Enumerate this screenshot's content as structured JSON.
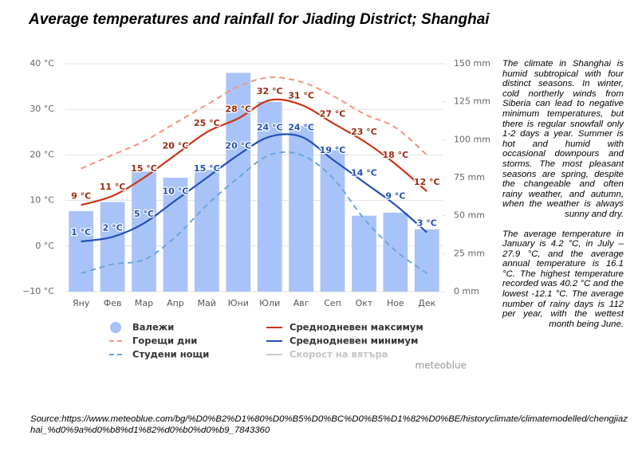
{
  "chart_data": {
    "type": "bar-line",
    "title": "Average temperatures and rainfall for Jiading District; Shanghai",
    "categories": [
      "Яну",
      "Фев",
      "Мар",
      "Апр",
      "Май",
      "Юни",
      "Юли",
      "Авг",
      "Сеп",
      "Окт",
      "Ное",
      "Дек"
    ],
    "series": [
      {
        "name": "Валежи",
        "color": "#a8c3f7",
        "type": "bar",
        "axis": "y2",
        "values": [
          53,
          59,
          79,
          75,
          80,
          144,
          125,
          109,
          93,
          50,
          52,
          41
        ]
      },
      {
        "name": "Горещи дни",
        "color": "#f2957f",
        "type": "line",
        "dashed": true,
        "values": [
          17,
          20,
          23,
          27,
          31,
          35,
          37,
          36,
          33,
          29,
          26,
          20
        ]
      },
      {
        "name": "Студени нощи",
        "color": "#6aa6d8",
        "type": "line",
        "dashed": true,
        "values": [
          -6,
          -4,
          -3,
          2,
          9,
          15,
          20,
          20,
          15,
          6,
          -1,
          -6
        ]
      },
      {
        "name": "Среднодневен максимум",
        "color": "#cc3314",
        "type": "line",
        "dashed": false,
        "values": [
          9,
          11,
          15,
          20,
          25,
          28,
          32,
          31,
          27,
          23,
          18,
          12
        ],
        "value_labels": [
          "9 °C",
          "11 °C",
          "15 °C",
          "20 °C",
          "25 °C",
          "28 °C",
          "32 °C",
          "31 °C",
          "27 °C",
          "23 °C",
          "18 °C",
          "12 °C"
        ],
        "label_color": "#9c2a10"
      },
      {
        "name": "Среднодневен минимум",
        "color": "#2451b5",
        "type": "line",
        "dashed": false,
        "values": [
          1,
          2,
          5,
          10,
          15,
          20,
          24,
          24,
          19,
          14,
          9,
          3
        ],
        "value_labels": [
          "1 °C",
          "2 °C",
          "5 °C",
          "10 °C",
          "15 °C",
          "20 °C",
          "24 °C",
          "24 °C",
          "19 °C",
          "14 °C",
          "9 °C",
          "3 °C"
        ],
        "label_color": "#2451b5"
      }
    ],
    "legend_extra": {
      "name": "Скорост на вятъра",
      "color": "#cccccc"
    },
    "ylim": [
      -10,
      40
    ],
    "yticks": [
      {
        "value": -10,
        "label": "−10 °C"
      },
      {
        "value": 0,
        "label": "0 °C"
      },
      {
        "value": 10,
        "label": "10 °C"
      },
      {
        "value": 20,
        "label": "20 °C"
      },
      {
        "value": 30,
        "label": "30 °C"
      },
      {
        "value": 40,
        "label": "40 °C"
      }
    ],
    "y2lim": [
      0,
      150
    ],
    "y2ticks": [
      {
        "value": 0,
        "label": "0 mm"
      },
      {
        "value": 25,
        "label": "25 mm"
      },
      {
        "value": 50,
        "label": "50 mm"
      },
      {
        "value": 75,
        "label": "75 mm"
      },
      {
        "value": 100,
        "label": "100 mm"
      },
      {
        "value": 125,
        "label": "125 mm"
      },
      {
        "value": 150,
        "label": "150 mm"
      }
    ],
    "grid": true,
    "watermark": "meteoblue"
  },
  "side_text": [
    "The climate in Shanghai is humid subtropical with four distinct seasons. In winter, cold northerly winds from Siberia can lead to negative minimum temperatures, but there is regular snowfall only 1-2 days a year. Summer is hot and humid with occasional downpours and storms. The most pleasant seasons are spring, despite the changeable and often rainy weather, and autumn, when the weather is always sunny and dry.",
    "The average temperature in January is 4.2 °C, in July – 27.9 °C, and the average annual temperature is 16.1 °C. The highest temperature recorded was 40.2 °C and the lowest -12.1 °C. The average number of rainy days is 112 per year, with the wettest month being June."
  ],
  "source": "Source:https://www.meteoblue.com/bg/%D0%B2%D1%80%D0%B5%D0%BC%D0%B5%D1%82%D0%BE/historyclimate/climatemodelled/chengjiazhai_%d0%9a%d0%b8%d1%82%d0%b0%d0%b9_7843360"
}
